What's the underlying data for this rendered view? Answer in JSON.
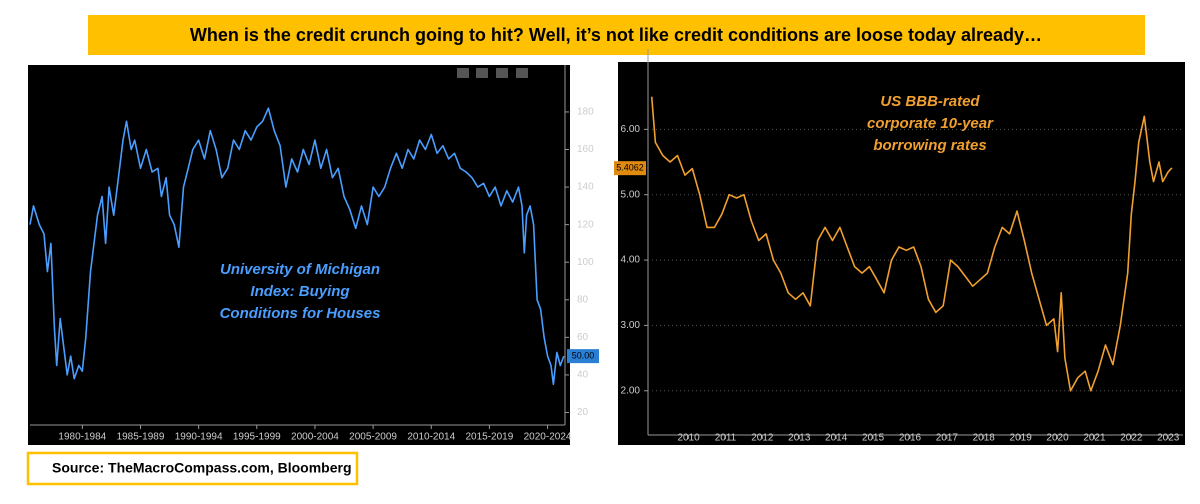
{
  "header": {
    "title": "When is the credit crunch going to hit? Well, it’s not like credit conditions are loose today already…"
  },
  "source": "Source: TheMacroCompass.com, Bloomberg",
  "chart_data": [
    {
      "type": "line",
      "color": "#4a9eff",
      "y_axis_side": "right",
      "grid": false,
      "annotation": [
        "University of Michigan",
        "Index: Buying",
        "Conditions for Houses"
      ],
      "last_value": {
        "value": 50,
        "label": "50.00"
      },
      "xlim": [
        1978,
        2024
      ],
      "ylim": [
        16,
        197
      ],
      "xticks": [
        {
          "value": 1982.5,
          "label": "1980-1984"
        },
        {
          "value": 1987.5,
          "label": "1985-1989"
        },
        {
          "value": 1992.5,
          "label": "1990-1994"
        },
        {
          "value": 1997.5,
          "label": "1995-1999"
        },
        {
          "value": 2002.5,
          "label": "2000-2004"
        },
        {
          "value": 2007.5,
          "label": "2005-2009"
        },
        {
          "value": 2012.5,
          "label": "2010-2014"
        },
        {
          "value": 2017.5,
          "label": "2015-2019"
        },
        {
          "value": 2022.5,
          "label": "2020-2024"
        }
      ],
      "yticks": [
        20,
        40,
        60,
        80,
        100,
        120,
        140,
        160,
        180
      ],
      "x": [
        1978,
        1978.3,
        1978.8,
        1979.2,
        1979.5,
        1979.8,
        1980.1,
        1980.3,
        1980.6,
        1980.9,
        1981.2,
        1981.5,
        1981.8,
        1982.2,
        1982.5,
        1982.8,
        1983.2,
        1983.5,
        1983.8,
        1984.2,
        1984.5,
        1984.8,
        1985.2,
        1985.6,
        1986,
        1986.3,
        1986.7,
        1987,
        1987.5,
        1988,
        1988.5,
        1989,
        1989.3,
        1989.7,
        1990,
        1990.4,
        1990.8,
        1991.2,
        1991.6,
        1992,
        1992.5,
        1993,
        1993.5,
        1994,
        1994.5,
        1995,
        1995.5,
        1996,
        1996.5,
        1997,
        1997.5,
        1998,
        1998.5,
        1999,
        1999.5,
        2000,
        2000.5,
        2001,
        2001.5,
        2002,
        2002.5,
        2003,
        2003.5,
        2004,
        2004.5,
        2005,
        2005.5,
        2006,
        2006.5,
        2007,
        2007.5,
        2008,
        2008.5,
        2009,
        2009.5,
        2010,
        2010.5,
        2011,
        2011.5,
        2012,
        2012.5,
        2013,
        2013.5,
        2014,
        2014.5,
        2015,
        2015.5,
        2016,
        2016.5,
        2017,
        2017.5,
        2018,
        2018.5,
        2019,
        2019.5,
        2020,
        2020.3,
        2020.5,
        2020.7,
        2021,
        2021.3,
        2021.6,
        2021.9,
        2022.2,
        2022.5,
        2022.8,
        2023,
        2023.3,
        2023.6,
        2023.9
      ],
      "values": [
        120,
        130,
        120,
        115,
        95,
        110,
        65,
        45,
        70,
        55,
        40,
        50,
        38,
        45,
        42,
        60,
        95,
        110,
        125,
        135,
        110,
        140,
        125,
        145,
        165,
        175,
        160,
        165,
        150,
        160,
        148,
        150,
        135,
        145,
        125,
        120,
        108,
        140,
        150,
        160,
        165,
        155,
        170,
        160,
        145,
        150,
        165,
        160,
        170,
        165,
        172,
        175,
        182,
        170,
        162,
        140,
        155,
        148,
        160,
        152,
        165,
        150,
        160,
        145,
        150,
        135,
        128,
        118,
        130,
        120,
        140,
        135,
        140,
        150,
        158,
        150,
        160,
        155,
        165,
        160,
        168,
        158,
        162,
        155,
        158,
        150,
        148,
        145,
        140,
        142,
        135,
        140,
        130,
        138,
        132,
        140,
        130,
        105,
        125,
        130,
        120,
        80,
        75,
        60,
        50,
        45,
        35,
        52,
        45,
        50
      ]
    },
    {
      "type": "line",
      "color": "#f0a030",
      "y_axis_side": "left",
      "grid": true,
      "annotation": [
        "US BBB-rated",
        "corporate 10-year",
        "borrowing rates"
      ],
      "last_value": {
        "value": 5.4062,
        "label": "5.4062"
      },
      "xlim": [
        2008.9,
        2023.4
      ],
      "ylim": [
        1.4,
        7.0
      ],
      "xticks": [
        2010,
        2011,
        2012,
        2013,
        2014,
        2015,
        2016,
        2017,
        2018,
        2019,
        2020,
        2021,
        2022,
        2023
      ],
      "yticks": [
        {
          "value": 2,
          "label": "2.00"
        },
        {
          "value": 3,
          "label": "3.00"
        },
        {
          "value": 4,
          "label": "4.00"
        },
        {
          "value": 5,
          "label": "5.00"
        },
        {
          "value": 6,
          "label": "6.00"
        }
      ],
      "x": [
        2009.0,
        2009.1,
        2009.3,
        2009.5,
        2009.7,
        2009.9,
        2010.1,
        2010.3,
        2010.5,
        2010.7,
        2010.9,
        2011.1,
        2011.3,
        2011.5,
        2011.7,
        2011.9,
        2012.1,
        2012.3,
        2012.5,
        2012.7,
        2012.9,
        2013.1,
        2013.3,
        2013.5,
        2013.7,
        2013.9,
        2014.1,
        2014.3,
        2014.5,
        2014.7,
        2014.9,
        2015.1,
        2015.3,
        2015.5,
        2015.7,
        2015.9,
        2016.1,
        2016.3,
        2016.5,
        2016.7,
        2016.9,
        2017.1,
        2017.3,
        2017.5,
        2017.7,
        2017.9,
        2018.1,
        2018.3,
        2018.5,
        2018.7,
        2018.9,
        2019.1,
        2019.3,
        2019.5,
        2019.7,
        2019.9,
        2020.0,
        2020.1,
        2020.2,
        2020.35,
        2020.55,
        2020.75,
        2020.9,
        2021.1,
        2021.3,
        2021.5,
        2021.7,
        2021.9,
        2022.0,
        2022.1,
        2022.2,
        2022.35,
        2022.5,
        2022.6,
        2022.75,
        2022.85,
        2023.0,
        2023.1
      ],
      "values": [
        6.5,
        5.8,
        5.6,
        5.5,
        5.6,
        5.3,
        5.4,
        5.0,
        4.5,
        4.5,
        4.7,
        5.0,
        4.95,
        5.0,
        4.6,
        4.3,
        4.4,
        4.0,
        3.8,
        3.5,
        3.4,
        3.5,
        3.3,
        4.3,
        4.5,
        4.3,
        4.5,
        4.2,
        3.9,
        3.8,
        3.9,
        3.7,
        3.5,
        4.0,
        4.2,
        4.15,
        4.2,
        3.9,
        3.4,
        3.2,
        3.3,
        4.0,
        3.9,
        3.75,
        3.6,
        3.7,
        3.8,
        4.2,
        4.5,
        4.4,
        4.75,
        4.3,
        3.8,
        3.4,
        3.0,
        3.1,
        2.6,
        3.5,
        2.5,
        2.0,
        2.2,
        2.3,
        2.0,
        2.3,
        2.7,
        2.4,
        3.0,
        3.8,
        4.7,
        5.2,
        5.8,
        6.2,
        5.5,
        5.2,
        5.5,
        5.2,
        5.35,
        5.41
      ]
    }
  ]
}
